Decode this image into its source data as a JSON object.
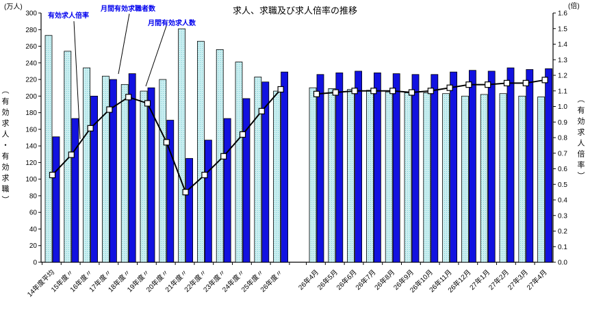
{
  "title": "求人、求職及び求人倍率の推移",
  "units": {
    "left": "(万人)",
    "right": "(倍)"
  },
  "captions": {
    "left": "（有効求人・有効求職）",
    "right": "（有効求人倍率）"
  },
  "legend": {
    "ratio": "有効求人倍率",
    "seekers": "月間有効求職者数",
    "offers": "月間有効求人数"
  },
  "colors": {
    "seekers_base": "#c9eef0",
    "seekers_dot": "#7fcfd6",
    "offers": "#1212e0",
    "line": "#000000",
    "marker_fill": "#ffffff",
    "legend_text": "#0000ee",
    "axis": "#000000"
  },
  "chart_data": {
    "type": "bar",
    "title": "求人、求職及び求人倍率の推移",
    "grid": false,
    "legend_position": "top-left annotations with leader lines",
    "group_sizes": [
      13,
      13
    ],
    "categories": [
      "14年度平均",
      "15年度〃",
      "16年度〃",
      "17年度〃",
      "18年度〃",
      "19年度〃",
      "20年度〃",
      "21年度〃",
      "22年度〃",
      "23年度〃",
      "24年度〃",
      "25年度〃",
      "26年度〃",
      "26年4月",
      "26年5月",
      "26年6月",
      "26年7月",
      "26年8月",
      "26年9月",
      "26年10月",
      "26年11月",
      "26年12月",
      "27年1月",
      "27年2月",
      "27年3月",
      "27年4月"
    ],
    "series": [
      {
        "name": "月間有効求職者数",
        "type": "bar",
        "axis": "left",
        "values": [
          273,
          254,
          234,
          224,
          214,
          206,
          220,
          281,
          266,
          256,
          241,
          223,
          206,
          210,
          209,
          208,
          207,
          205,
          204,
          204,
          203,
          200,
          202,
          203,
          200,
          199
        ]
      },
      {
        "name": "月間有効求人数",
        "type": "bar",
        "axis": "left",
        "values": [
          151,
          173,
          200,
          220,
          227,
          210,
          171,
          125,
          147,
          173,
          197,
          217,
          229,
          226,
          228,
          230,
          228,
          227,
          226,
          226,
          229,
          231,
          230,
          234,
          232,
          233
        ]
      },
      {
        "name": "有効求人倍率",
        "type": "line",
        "axis": "right",
        "marker": "white-square",
        "values": [
          0.56,
          0.69,
          0.86,
          0.98,
          1.06,
          1.02,
          0.77,
          0.45,
          0.56,
          0.68,
          0.82,
          0.97,
          1.11,
          1.08,
          1.09,
          1.1,
          1.1,
          1.1,
          1.09,
          1.1,
          1.12,
          1.14,
          1.14,
          1.15,
          1.15,
          1.17
        ]
      }
    ],
    "left_axis": {
      "unit": "(万人)",
      "label": "（有効求人・有効求職）",
      "range": [
        0,
        300
      ],
      "ticks": [
        0,
        20,
        40,
        60,
        80,
        100,
        120,
        140,
        160,
        180,
        200,
        220,
        240,
        260,
        280,
        300
      ]
    },
    "right_axis": {
      "unit": "(倍)",
      "label": "（有効求人倍率）",
      "range": [
        0,
        1.6
      ],
      "ticks": [
        "0.0",
        "0.1",
        "0.2",
        "0.3",
        "0.4",
        "0.5",
        "0.6",
        "0.7",
        "0.8",
        "0.9",
        "1.0",
        "1.1",
        "1.2",
        "1.3",
        "1.4",
        "1.5",
        "1.6"
      ]
    }
  }
}
